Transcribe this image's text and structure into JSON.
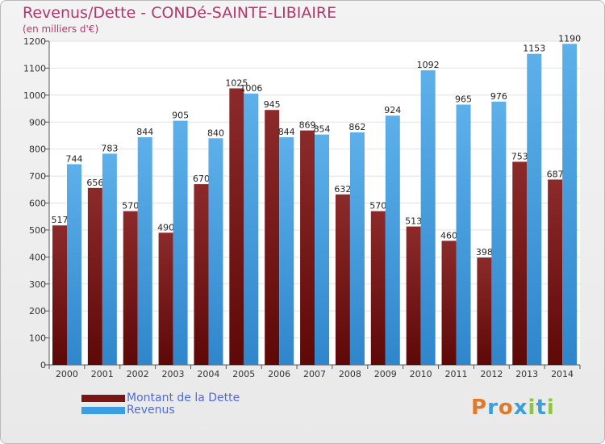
{
  "header": {
    "title": "Revenus/Dette - CONDé-SAINTE-LIBIAIRE",
    "subtitle": "(en milliers d'€)"
  },
  "chart_data": {
    "type": "bar",
    "categories": [
      "2000",
      "2001",
      "2002",
      "2003",
      "2004",
      "2005",
      "2006",
      "2007",
      "2008",
      "2009",
      "2010",
      "2011",
      "2012",
      "2013",
      "2014"
    ],
    "series": [
      {
        "name": "Montant de la Dette",
        "color": "#7a1515",
        "values": [
          517,
          656,
          570,
          490,
          670,
          1025,
          945,
          869,
          632,
          570,
          513,
          460,
          398,
          753,
          687
        ]
      },
      {
        "name": "Revenus",
        "color": "#3e9ce3",
        "values": [
          744,
          783,
          844,
          905,
          840,
          1006,
          844,
          854,
          862,
          924,
          1092,
          965,
          976,
          1153,
          1190
        ]
      }
    ],
    "ylim": [
      0,
      1200
    ],
    "yticks": [
      0,
      100,
      200,
      300,
      400,
      500,
      600,
      700,
      800,
      900,
      1000,
      1100,
      1200
    ],
    "grid": true,
    "legend_position": "bottom-left"
  },
  "legend": [
    {
      "label": "Montant de la Dette",
      "color": "#7a1515"
    },
    {
      "label": "Revenus",
      "color": "#3e9ce3"
    }
  ],
  "logo": {
    "letters": [
      "P",
      "r",
      "o",
      "x",
      "i",
      "t",
      "i"
    ],
    "colors": [
      "#e07a2a",
      "#3aa0d8",
      "#e07a2a",
      "#3aa0d8",
      "#8cc63f",
      "#3aa0d8",
      "#8cc63f"
    ]
  }
}
